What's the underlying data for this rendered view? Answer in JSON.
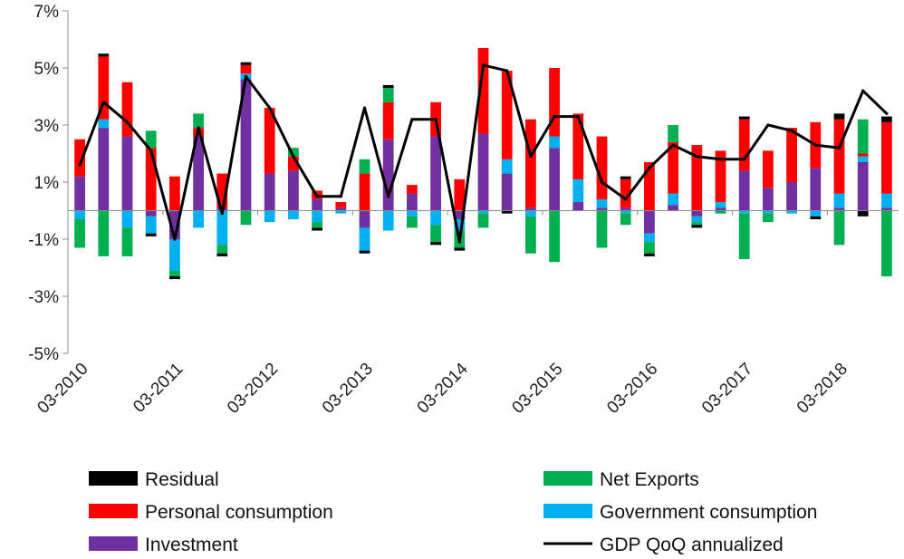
{
  "chart_data": {
    "type": "bar",
    "stacked": true,
    "title": "",
    "xlabel": "",
    "ylabel": "",
    "ylim": [
      -5,
      7
    ],
    "yticks": [
      7,
      5,
      3,
      1,
      -1,
      -3,
      -5
    ],
    "ytick_labels": [
      "7%",
      "5%",
      "3%",
      "1%",
      "-1%",
      "-3%",
      "-5%"
    ],
    "grid": false,
    "legend_position": "bottom",
    "x_tick_labels": [
      {
        "index": 0,
        "label": "03-2010"
      },
      {
        "index": 4,
        "label": "03-2011"
      },
      {
        "index": 8,
        "label": "03-2012"
      },
      {
        "index": 12,
        "label": "03-2013"
      },
      {
        "index": 16,
        "label": "03-2014"
      },
      {
        "index": 20,
        "label": "03-2015"
      },
      {
        "index": 24,
        "label": "03-2016"
      },
      {
        "index": 28,
        "label": "03-2017"
      },
      {
        "index": 32,
        "label": "03-2018"
      }
    ],
    "categories": [
      "03-2010",
      "06-2010",
      "09-2010",
      "12-2010",
      "03-2011",
      "06-2011",
      "09-2011",
      "12-2011",
      "03-2012",
      "06-2012",
      "09-2012",
      "12-2012",
      "03-2013",
      "06-2013",
      "09-2013",
      "12-2013",
      "03-2014",
      "06-2014",
      "09-2014",
      "12-2014",
      "03-2015",
      "06-2015",
      "09-2015",
      "12-2015",
      "03-2016",
      "06-2016",
      "09-2016",
      "12-2016",
      "03-2017",
      "06-2017",
      "09-2017",
      "12-2017",
      "03-2018",
      "06-2018",
      "09-2018"
    ],
    "series": [
      {
        "name": "Investment",
        "color": "#7030A0",
        "values": [
          1.2,
          2.9,
          2.6,
          -0.2,
          -1.0,
          2.6,
          0.1,
          4.6,
          1.3,
          1.4,
          0.4,
          0.1,
          -0.6,
          2.5,
          0.6,
          2.6,
          -0.3,
          2.7,
          1.3,
          0.1,
          2.2,
          0.3,
          0.1,
          0.1,
          -0.8,
          0.2,
          -0.2,
          0.1,
          1.4,
          0.8,
          1.0,
          1.5,
          0.1,
          1.7,
          0.1
        ]
      },
      {
        "name": "Government consumption",
        "color": "#00B0F0",
        "values": [
          -0.3,
          0.3,
          -0.6,
          -0.6,
          -1.1,
          -0.6,
          -1.2,
          0.2,
          -0.4,
          -0.3,
          -0.4,
          -0.1,
          -0.8,
          -0.7,
          -0.2,
          -0.5,
          -0.4,
          -0.1,
          0.5,
          -0.2,
          0.4,
          0.8,
          0.3,
          -0.1,
          -0.3,
          0.4,
          -0.2,
          0.2,
          -0.1,
          -0.1,
          -0.1,
          -0.2,
          0.5,
          0.2,
          0.5
        ]
      },
      {
        "name": "Personal consumption",
        "color": "#FF0000",
        "values": [
          1.3,
          2.2,
          1.9,
          2.2,
          1.2,
          0.3,
          1.2,
          0.3,
          2.3,
          0.5,
          0.3,
          0.2,
          1.3,
          1.3,
          0.3,
          1.2,
          1.1,
          3.0,
          3.1,
          3.1,
          2.4,
          2.3,
          2.2,
          1.0,
          1.7,
          1.8,
          2.3,
          1.8,
          1.8,
          1.3,
          1.9,
          1.6,
          2.6,
          0.1,
          2.5
        ]
      },
      {
        "name": "Net Exports",
        "color": "#00B050",
        "values": [
          -1.0,
          -1.6,
          -1.0,
          0.6,
          -0.2,
          0.5,
          -0.3,
          -0.5,
          0.0,
          0.3,
          -0.2,
          0.0,
          0.5,
          0.5,
          -0.4,
          -0.6,
          -0.6,
          -0.5,
          0.0,
          -1.3,
          -1.8,
          0.0,
          -1.3,
          -0.4,
          -0.4,
          0.6,
          -0.1,
          -0.1,
          -1.6,
          -0.3,
          0.0,
          0.0,
          -1.2,
          1.2,
          -2.3
        ]
      },
      {
        "name": "Residual",
        "color": "#000000",
        "values": [
          0.0,
          0.1,
          0.0,
          -0.1,
          -0.1,
          0.0,
          -0.1,
          0.1,
          0.0,
          0.0,
          -0.1,
          0.0,
          -0.1,
          0.1,
          0.0,
          -0.1,
          -0.1,
          0.0,
          -0.1,
          0.0,
          0.0,
          0.0,
          0.0,
          0.1,
          -0.1,
          0.0,
          -0.1,
          0.0,
          0.1,
          0.0,
          0.0,
          -0.1,
          0.2,
          -0.2,
          0.2
        ]
      }
    ],
    "line_series": {
      "name": "GDP QoQ annualized",
      "color": "#000000",
      "values": [
        1.6,
        3.8,
        3.1,
        2.1,
        -1.0,
        2.9,
        -0.1,
        4.7,
        3.6,
        1.9,
        0.5,
        0.5,
        3.6,
        0.5,
        3.2,
        3.2,
        -1.1,
        5.1,
        4.9,
        1.9,
        3.3,
        3.3,
        1.0,
        0.4,
        1.5,
        2.3,
        1.9,
        1.8,
        1.8,
        3.0,
        2.8,
        2.3,
        2.2,
        4.2,
        3.4
      ]
    },
    "legend": [
      {
        "name": "Residual",
        "kind": "bar",
        "color": "#000000",
        "column": 0,
        "row": 0
      },
      {
        "name": "Net Exports",
        "kind": "bar",
        "color": "#00B050",
        "column": 1,
        "row": 0
      },
      {
        "name": "Personal consumption",
        "kind": "bar",
        "color": "#FF0000",
        "column": 0,
        "row": 1
      },
      {
        "name": "Government consumption",
        "kind": "bar",
        "color": "#00B0F0",
        "column": 1,
        "row": 1
      },
      {
        "name": "Investment",
        "kind": "bar",
        "color": "#7030A0",
        "column": 0,
        "row": 2
      },
      {
        "name": "GDP QoQ annualized",
        "kind": "line",
        "color": "#000000",
        "column": 1,
        "row": 2
      }
    ]
  }
}
